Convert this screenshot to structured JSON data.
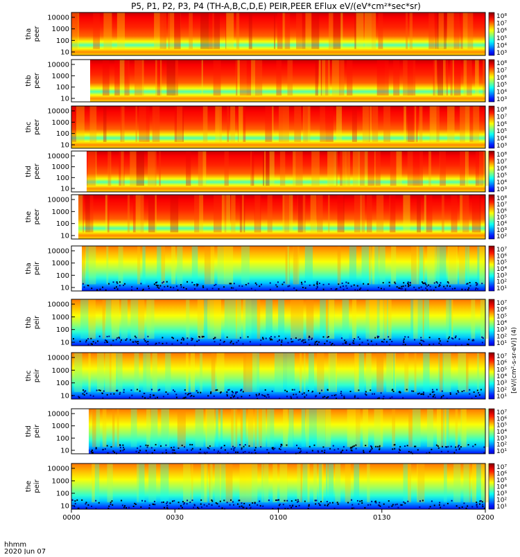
{
  "chart_data": {
    "type": "heatmap",
    "title": "P5, P1, P2, P3, P4 (TH-A,B,C,D,E) PEIR,PEER EFlux eV/(eV*cm²*sec*sr)",
    "xlabel": "hhmm",
    "date_label": "2020 Jun 07",
    "x_ticks": [
      "0000",
      "0030",
      "0100",
      "0130",
      "0200"
    ],
    "y_ticks": [
      "10000",
      "1000",
      "100",
      "10"
    ],
    "y_scale": "log",
    "y_range_eV": [
      5,
      30000
    ],
    "colorbar_label": "[eV/(cm²-s-sr-eV)] (4)",
    "colorbar_ticks": {
      "peer": [
        "10⁸",
        "10⁷",
        "10⁶",
        "10⁵",
        "10⁴",
        "10³",
        "10²"
      ],
      "peir": [
        "10⁷",
        "10⁶",
        "10⁵",
        "10⁴",
        "10³",
        "10²",
        "10¹"
      ]
    },
    "panels": [
      {
        "probe": "tha",
        "species": "peer",
        "label_top": "tha",
        "label_bottom": "peer"
      },
      {
        "probe": "thb",
        "species": "peer",
        "label_top": "thb",
        "label_bottom": "peer"
      },
      {
        "probe": "thc",
        "species": "peer",
        "label_top": "thc",
        "label_bottom": "peer"
      },
      {
        "probe": "thd",
        "species": "peer",
        "label_top": "thd",
        "label_bottom": "peer"
      },
      {
        "probe": "the",
        "species": "peer",
        "label_top": "the",
        "label_bottom": "peer"
      },
      {
        "probe": "tha",
        "species": "peir",
        "label_top": "tha",
        "label_bottom": "peir"
      },
      {
        "probe": "thb",
        "species": "peir",
        "label_top": "thb",
        "label_bottom": "peir"
      },
      {
        "probe": "thc",
        "species": "peir",
        "label_top": "thc",
        "label_bottom": "peir"
      },
      {
        "probe": "thd",
        "species": "peir",
        "label_top": "thd",
        "label_bottom": "peir"
      },
      {
        "probe": "the",
        "species": "peir",
        "label_top": "the",
        "label_bottom": "peir"
      }
    ]
  }
}
